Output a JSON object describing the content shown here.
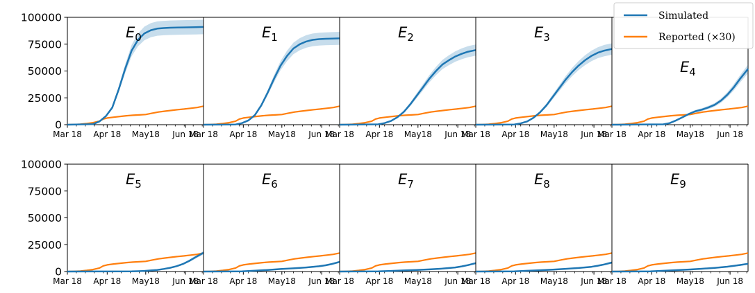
{
  "chart_data": {
    "type": "line",
    "x_ticks": [
      "Mar 18",
      "Apr 18",
      "May18",
      "Jun 18"
    ],
    "y_ticks": [
      "0",
      "25000",
      "50000",
      "75000",
      "100000"
    ],
    "ylim": [
      0,
      100000
    ],
    "x_range_days": [
      0,
      106
    ],
    "x_tick_days": [
      0,
      31,
      61,
      92
    ],
    "legend": {
      "position": "top-right",
      "entries": [
        {
          "label": "Simulated",
          "color": "#1f77b4"
        },
        {
          "label": "Reported (×30)",
          "color": "#ff7f0e"
        }
      ]
    },
    "reported_series": {
      "name": "Reported (×30)",
      "x": [
        0,
        5,
        10,
        15,
        20,
        25,
        28,
        31,
        36,
        41,
        46,
        51,
        56,
        61,
        66,
        71,
        76,
        81,
        86,
        91,
        96,
        101,
        106
      ],
      "y": [
        0,
        100,
        400,
        1000,
        1900,
        3300,
        5300,
        6200,
        7000,
        7700,
        8300,
        8800,
        9100,
        9500,
        10700,
        11800,
        12600,
        13300,
        14000,
        14600,
        15300,
        16000,
        17200
      ]
    },
    "panels": [
      {
        "label": "E",
        "sub": "0",
        "simulated": {
          "x": [
            0,
            20,
            25,
            30,
            35,
            40,
            45,
            50,
            55,
            60,
            65,
            70,
            75,
            80,
            90,
            100,
            106
          ],
          "y": [
            0,
            500,
            3000,
            8000,
            16000,
            33000,
            52000,
            69000,
            79000,
            85000,
            88000,
            89500,
            90000,
            90300,
            90600,
            90800,
            91000
          ]
        }
      },
      {
        "label": "E",
        "sub": "1",
        "simulated": {
          "x": [
            0,
            25,
            30,
            35,
            40,
            45,
            50,
            55,
            60,
            65,
            70,
            75,
            80,
            85,
            90,
            95,
            100,
            106
          ],
          "y": [
            0,
            200,
            1500,
            4000,
            9000,
            18000,
            30000,
            43000,
            55000,
            64000,
            71000,
            75000,
            77500,
            79000,
            79700,
            80000,
            80200,
            80400
          ]
        }
      },
      {
        "label": "E",
        "sub": "2",
        "simulated": {
          "x": [
            0,
            30,
            35,
            40,
            45,
            50,
            55,
            60,
            65,
            70,
            75,
            80,
            85,
            90,
            95,
            100,
            106
          ],
          "y": [
            0,
            300,
            1500,
            3500,
            7000,
            12000,
            19000,
            27000,
            35000,
            43000,
            50000,
            56000,
            60000,
            63500,
            66000,
            68000,
            69500
          ]
        }
      },
      {
        "label": "E",
        "sub": "3",
        "simulated": {
          "x": [
            0,
            30,
            35,
            40,
            45,
            50,
            55,
            60,
            65,
            70,
            75,
            80,
            85,
            90,
            95,
            100,
            106
          ],
          "y": [
            0,
            200,
            1200,
            3000,
            6500,
            11500,
            18000,
            26000,
            34000,
            42000,
            49000,
            55000,
            60000,
            64000,
            67000,
            69000,
            70500
          ]
        }
      },
      {
        "label": "E",
        "sub": "4",
        "simulated": {
          "x": [
            0,
            40,
            45,
            50,
            55,
            60,
            65,
            70,
            75,
            80,
            85,
            90,
            95,
            100,
            106
          ],
          "y": [
            0,
            300,
            1500,
            4000,
            7000,
            10000,
            12500,
            14000,
            16000,
            18500,
            22500,
            28000,
            35000,
            43000,
            52000
          ]
        }
      },
      {
        "label": "E",
        "sub": "5",
        "simulated": {
          "x": [
            0,
            50,
            55,
            60,
            65,
            70,
            75,
            80,
            85,
            90,
            95,
            100,
            106
          ],
          "y": [
            0,
            100,
            300,
            600,
            1000,
            1500,
            2400,
            3500,
            5000,
            7000,
            10000,
            13500,
            17500
          ]
        }
      },
      {
        "label": "E",
        "sub": "6",
        "simulated": {
          "x": [
            0,
            30,
            40,
            50,
            60,
            70,
            80,
            90,
            95,
            100,
            106
          ],
          "y": [
            0,
            200,
            800,
            1500,
            2300,
            3000,
            3800,
            4900,
            5800,
            7000,
            9000
          ]
        }
      },
      {
        "label": "E",
        "sub": "7",
        "simulated": {
          "x": [
            0,
            30,
            40,
            50,
            60,
            70,
            80,
            90,
            95,
            100,
            106
          ],
          "y": [
            0,
            150,
            600,
            1000,
            1500,
            2000,
            2700,
            3800,
            4800,
            6000,
            7800
          ]
        }
      },
      {
        "label": "E",
        "sub": "8",
        "simulated": {
          "x": [
            0,
            30,
            40,
            50,
            60,
            70,
            80,
            90,
            95,
            100,
            106
          ],
          "y": [
            0,
            200,
            700,
            1200,
            1800,
            2500,
            3300,
            4400,
            5400,
            6600,
            8400
          ]
        }
      },
      {
        "label": "E",
        "sub": "9",
        "simulated": {
          "x": [
            0,
            30,
            40,
            50,
            60,
            70,
            80,
            90,
            95,
            100,
            106
          ],
          "y": [
            0,
            200,
            700,
            1300,
            1900,
            2600,
            3400,
            4500,
            5300,
            6100,
            7200
          ]
        }
      }
    ]
  }
}
